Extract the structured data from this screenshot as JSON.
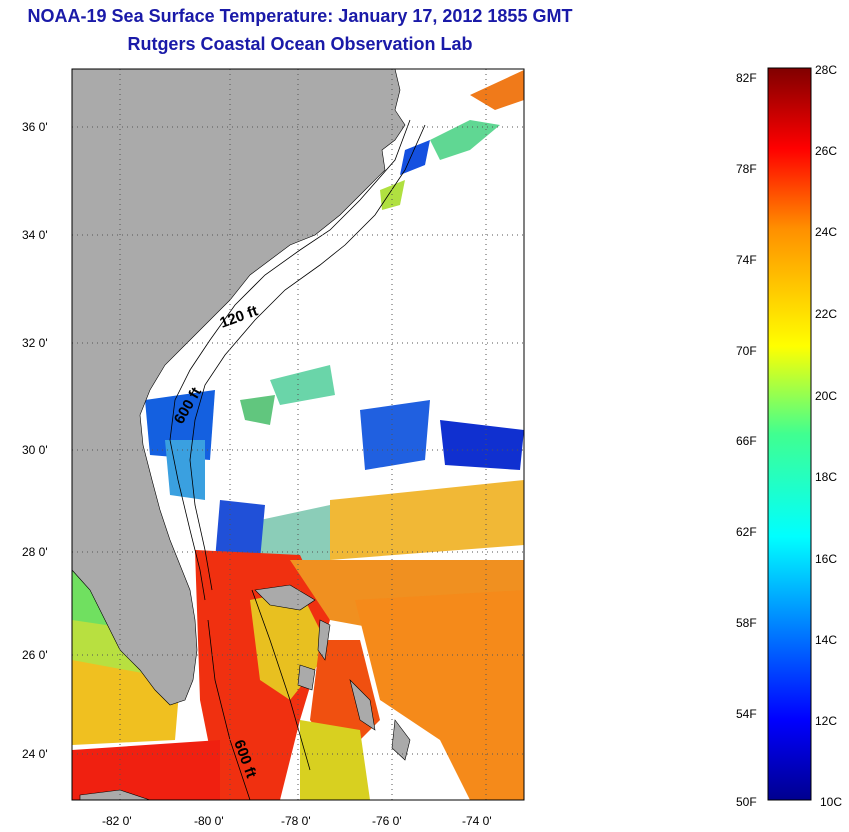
{
  "title_line1": "NOAA-19 Sea Surface Temperature:  January 17, 2012 1855 GMT",
  "title_line2": "Rutgers Coastal Ocean Observation Lab",
  "map": {
    "lat_labels": [
      "36 0'",
      "34 0'",
      "32 0'",
      "30 0'",
      "28 0'",
      "26 0'",
      "24 0'"
    ],
    "lon_labels": [
      "-82 0'",
      "-80 0'",
      "-78 0'",
      "-76 0'",
      "-74 0'"
    ],
    "contour_labels": [
      "120 ft",
      "600 ft",
      "600 ft"
    ],
    "colors": {
      "land": "#aaaaaa",
      "cloud": "#ffffff",
      "frame": "#000000"
    }
  },
  "colorbar": {
    "fahrenheit_labels": [
      "82F",
      "78F",
      "74F",
      "70F",
      "66F",
      "62F",
      "58F",
      "54F",
      "50F"
    ],
    "celsius_labels": [
      "28C",
      "26C",
      "24C",
      "22C",
      "20C",
      "18C",
      "16C",
      "14C",
      "12C",
      "10C"
    ],
    "range_c": [
      10,
      28
    ],
    "colormap": "jet"
  }
}
